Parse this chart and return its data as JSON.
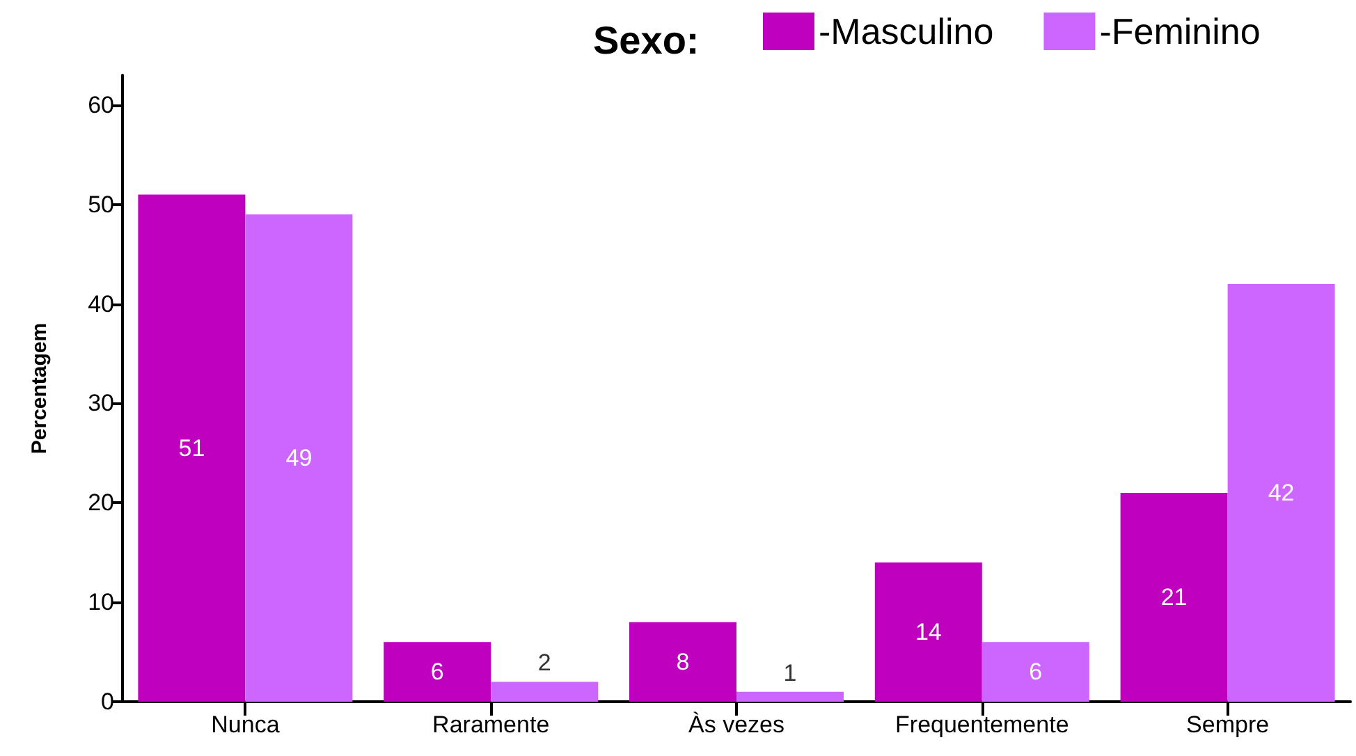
{
  "chart_data": {
    "type": "bar",
    "legend_title": "Sexo:",
    "ylabel": "Percentagem",
    "categories": [
      "Nunca",
      "Raramente",
      "Às vezes",
      "Frequentemente",
      "Sempre"
    ],
    "series": [
      {
        "name": "-Masculino",
        "color": "#bf00bf",
        "values": [
          51,
          6,
          8,
          14,
          21
        ]
      },
      {
        "name": "-Feminino",
        "color": "#cc66ff",
        "values": [
          49,
          2,
          1,
          6,
          42
        ]
      }
    ],
    "ylim": [
      0,
      63
    ],
    "yticks": [
      0,
      10,
      20,
      30,
      40,
      50,
      60
    ],
    "data_labels": true,
    "legend": "top right"
  }
}
